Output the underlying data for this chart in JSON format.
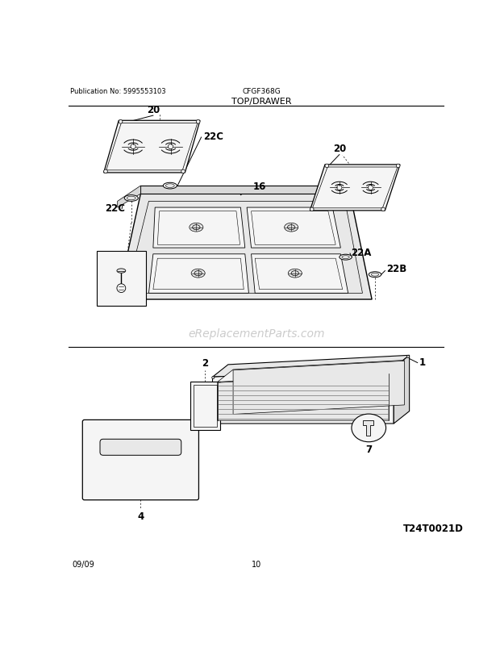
{
  "bg_color": "#ffffff",
  "pub_no": "Publication No: 5995553103",
  "model": "CFGF368G",
  "section": "TOP/DRAWER",
  "watermark": "eReplacementParts.com",
  "diagram_id": "T24T0021D",
  "date": "09/09",
  "page": "10",
  "line_color": "#000000",
  "light_gray": "#cccccc",
  "medium_gray": "#aaaaaa",
  "dark_gray": "#888888",
  "fill_light": "#f5f5f5",
  "fill_mid": "#e8e8e8",
  "fill_dark": "#d8d8d8",
  "watermark_color": "#cccccc"
}
